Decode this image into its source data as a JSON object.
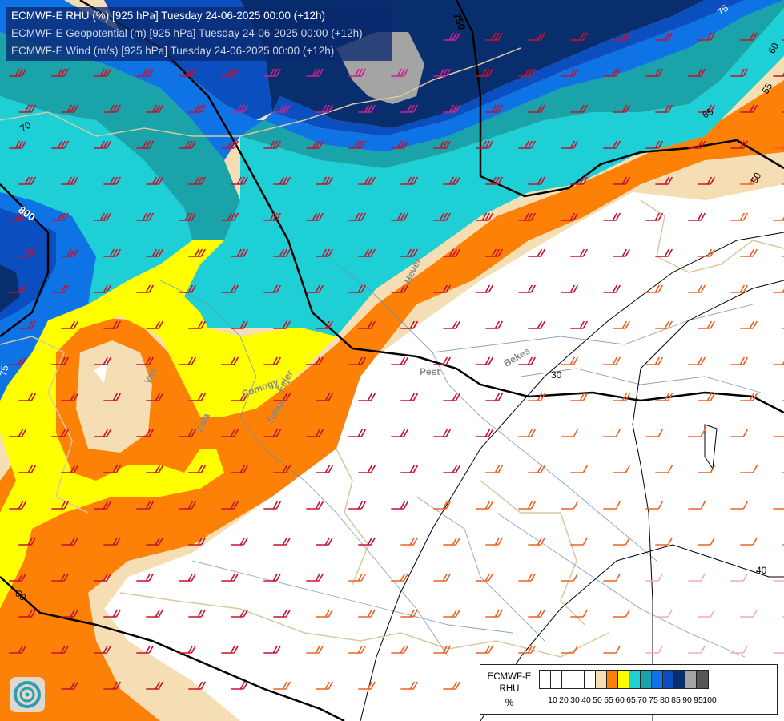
{
  "titles": [
    "ECMWF-E RHU (%) [925 hPa] Tuesday 24-06-2025 00:00 (+12h)",
    "ECMWF-E Geopotential (m) [925 hPa] Tuesday 24-06-2025 00:00 (+12h)",
    "ECMWF-E Wind (m/s) [925 hPa] Tuesday 24-06-2025 00:00 (+12h)"
  ],
  "legend": {
    "title_line1": "ECMWF-E",
    "title_line2": "RHU",
    "unit": "%",
    "levels": [
      "10",
      "20",
      "30",
      "40",
      "50",
      "55",
      "60",
      "65",
      "70",
      "75",
      "80",
      "85",
      "90",
      "95",
      "100"
    ],
    "colors": [
      "#ffffff",
      "#ffffff",
      "#ffffff",
      "#ffffff",
      "#ffffff",
      "#f5deb3",
      "#fd8107",
      "#ffff00",
      "#1ecfd6",
      "#1aa3a8",
      "#0e74e6",
      "#0a4ec0",
      "#082e6e",
      "#a4a4a4",
      "#555555"
    ]
  },
  "rhu_labels": [
    "75",
    "70",
    "65",
    "60",
    "55",
    "50",
    "40",
    "75",
    "60"
  ],
  "geo_labels": [
    "750",
    "800",
    "30"
  ],
  "place_labels": [
    "Hever",
    "Pest",
    "Bekes",
    "Somogy",
    "Tolna",
    "Fejer",
    "Zala",
    "Vas"
  ],
  "logo_icon": "ecmwf-logo-icon"
}
